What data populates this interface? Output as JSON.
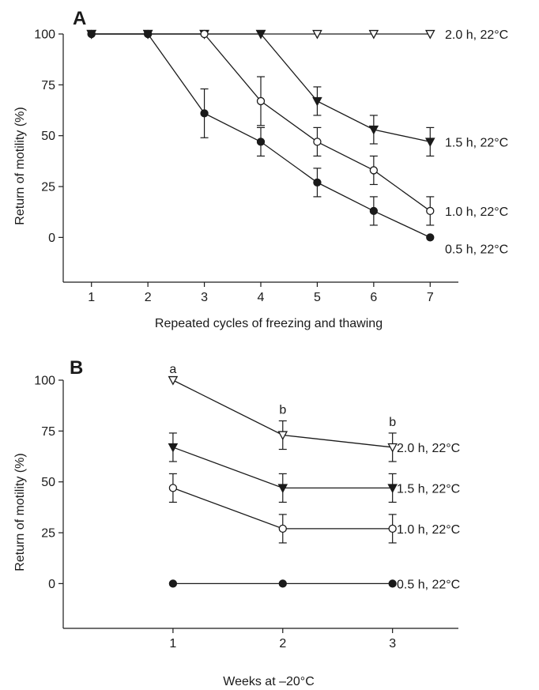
{
  "chart_data": [
    {
      "panel": "A",
      "type": "line",
      "xlabel": "Repeated cycles of freezing and thawing",
      "ylabel": "Return of motility (%)",
      "x": [
        1,
        2,
        3,
        4,
        5,
        6,
        7
      ],
      "xticks": [
        "1",
        "2",
        "3",
        "4",
        "5",
        "6",
        "7"
      ],
      "yticks": [
        "0",
        "25",
        "50",
        "75",
        "100"
      ],
      "xlim": [
        0.5,
        7.5
      ],
      "ylim": [
        -22,
        100
      ],
      "series": [
        {
          "name": "2.0 h, 22°C",
          "marker": "triangle-down-open",
          "values": [
            100,
            100,
            100,
            100,
            100,
            100,
            100
          ],
          "errors": [
            0,
            0,
            0,
            0,
            0,
            0,
            0
          ]
        },
        {
          "name": "1.5 h, 22°C",
          "marker": "triangle-down-filled",
          "values": [
            100,
            100,
            100,
            100,
            67,
            53,
            47
          ],
          "errors": [
            0,
            0,
            0,
            0,
            7,
            7,
            7
          ]
        },
        {
          "name": "1.0 h, 22°C",
          "marker": "circle-open",
          "values": [
            100,
            100,
            100,
            67,
            47,
            33,
            13
          ],
          "errors": [
            0,
            0,
            0,
            12,
            7,
            7,
            7
          ]
        },
        {
          "name": "0.5 h, 22°C",
          "marker": "circle-filled",
          "values": [
            100,
            100,
            61,
            47,
            27,
            13,
            0
          ],
          "errors": [
            0,
            0,
            12,
            7,
            7,
            7,
            0
          ]
        }
      ]
    },
    {
      "panel": "B",
      "type": "line",
      "xlabel": "Weeks at –20°C",
      "ylabel": "Return of motility (%)",
      "x": [
        1,
        2,
        3
      ],
      "xticks": [
        "1",
        "2",
        "3"
      ],
      "yticks": [
        "0",
        "25",
        "50",
        "75",
        "100"
      ],
      "xlim": [
        0.0,
        3.6
      ],
      "ylim": [
        -22,
        100
      ],
      "annotations": [
        {
          "x": 1,
          "y": 100,
          "text": "a"
        },
        {
          "x": 2,
          "y": 80,
          "text": "b"
        },
        {
          "x": 3,
          "y": 74,
          "text": "b"
        }
      ],
      "series": [
        {
          "name": "2.0 h, 22°C",
          "marker": "triangle-down-open",
          "values": [
            100,
            73,
            67
          ],
          "errors": [
            0,
            7,
            7
          ]
        },
        {
          "name": "1.5 h, 22°C",
          "marker": "triangle-down-filled",
          "values": [
            67,
            47,
            47
          ],
          "errors": [
            7,
            7,
            7
          ]
        },
        {
          "name": "1.0 h, 22°C",
          "marker": "circle-open",
          "values": [
            47,
            27,
            27
          ],
          "errors": [
            7,
            7,
            7
          ]
        },
        {
          "name": "0.5 h, 22°C",
          "marker": "circle-filled",
          "values": [
            0,
            0,
            0
          ],
          "errors": [
            0,
            0,
            0
          ]
        }
      ]
    }
  ]
}
